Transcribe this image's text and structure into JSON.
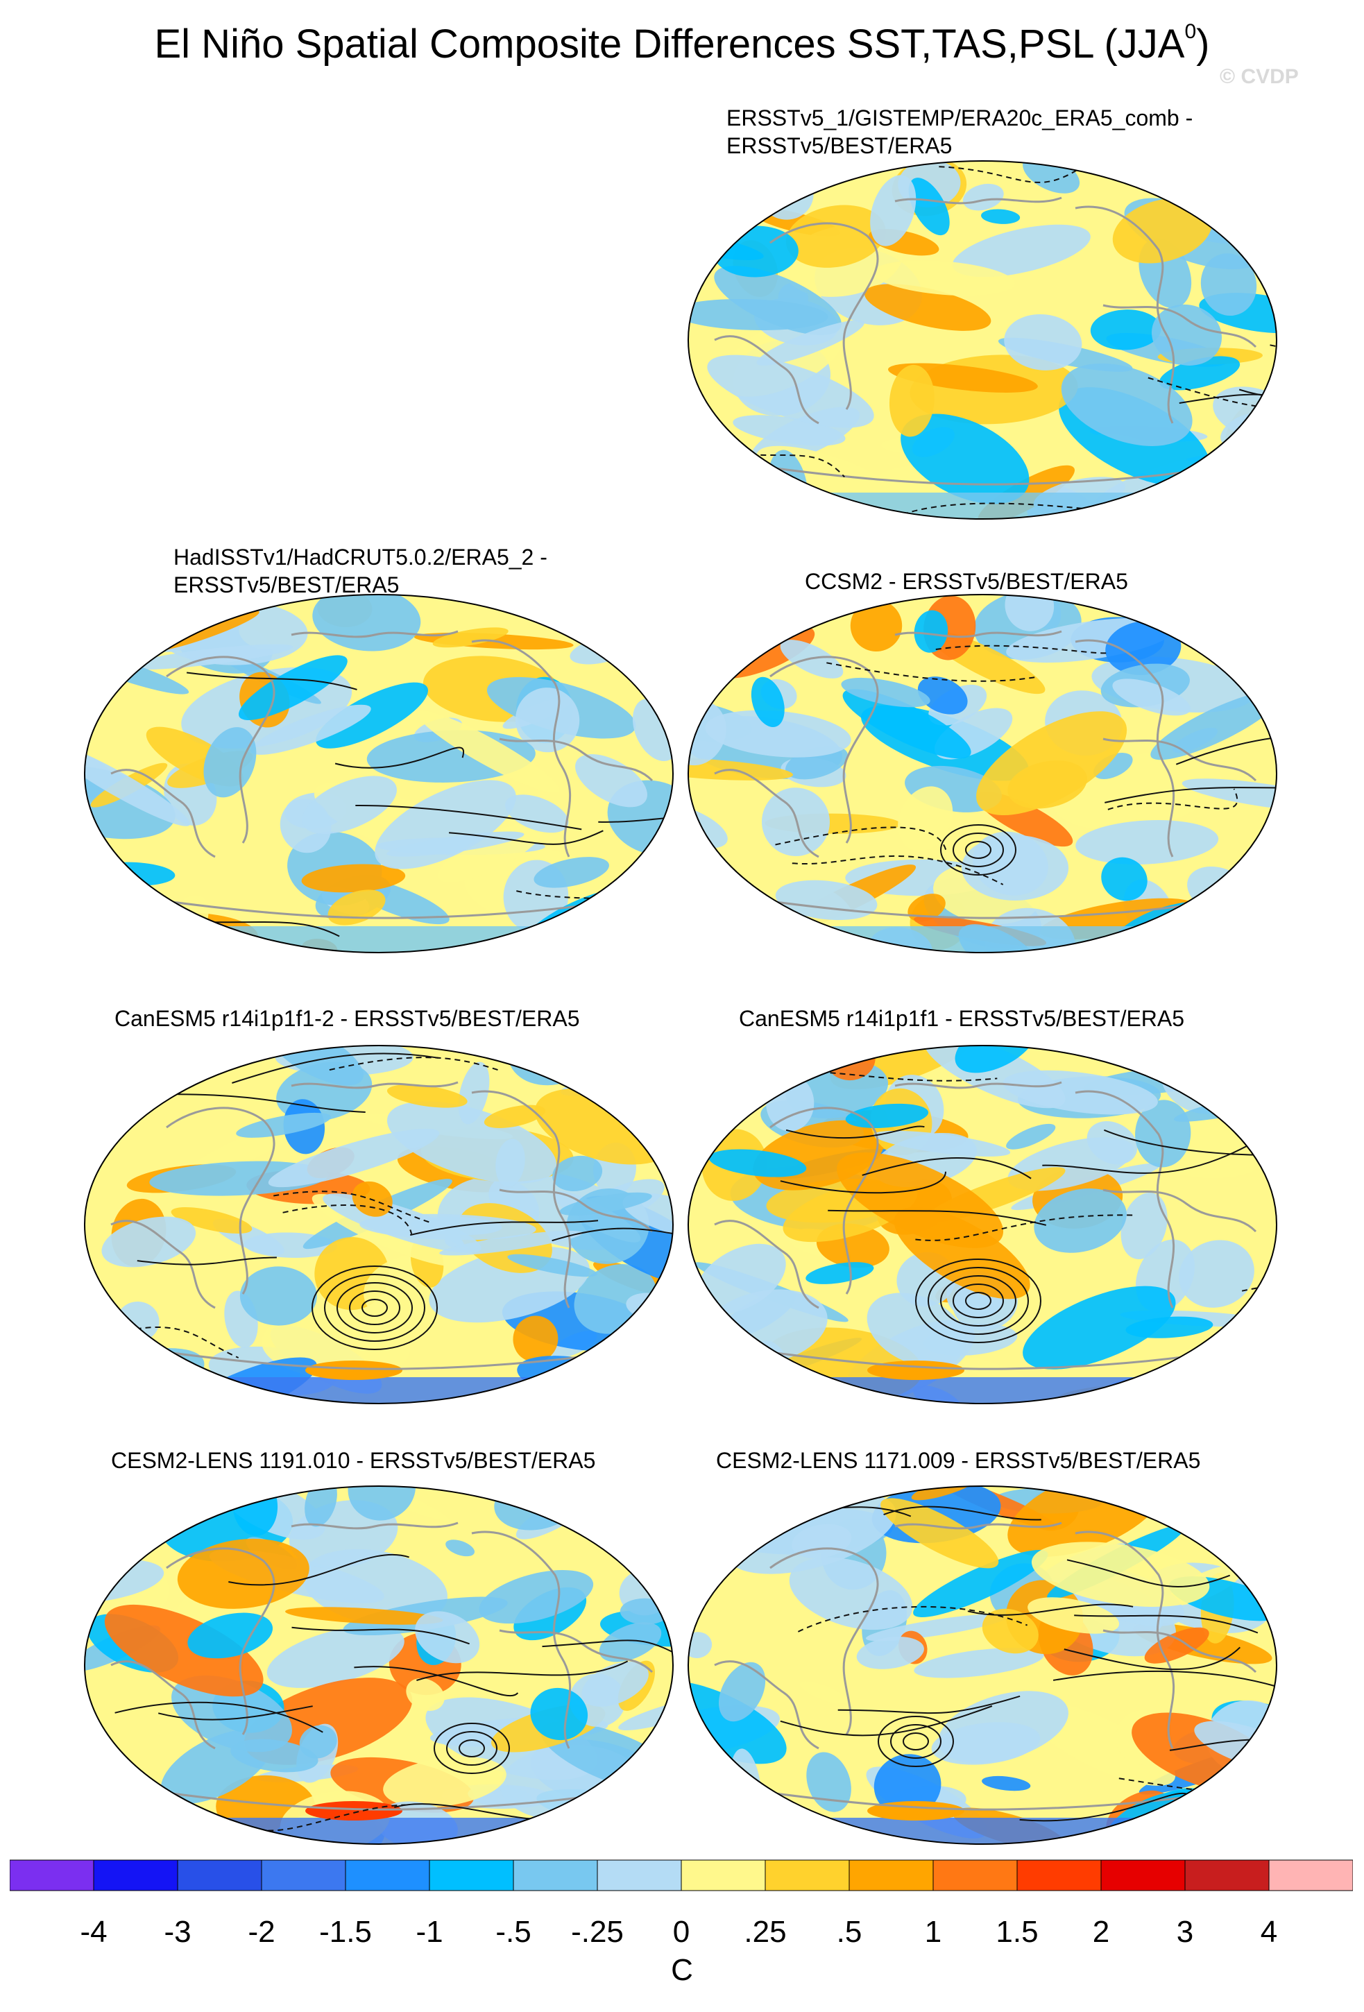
{
  "figure": {
    "title": "El Niño Spatial Composite Differences SST,TAS,PSL (JJA",
    "title_superscript": "0",
    "title_close": ")",
    "watermark": "© CVDP",
    "units": "C"
  },
  "panels": [
    {
      "id": "p1",
      "lines": [
        "ERSSTv5_1/GISTEMP/ERA20c_ERA5_comb -",
        "ERSSTv5/BEST/ERA5"
      ],
      "row": 0,
      "col": 1
    },
    {
      "id": "p2",
      "lines": [
        "HadISSTv1/HadCRUT5.0.2/ERA5_2 -",
        "ERSSTv5/BEST/ERA5"
      ],
      "row": 1,
      "col": 0
    },
    {
      "id": "p3",
      "lines": [
        "CCSM2 - ERSSTv5/BEST/ERA5"
      ],
      "row": 1,
      "col": 1
    },
    {
      "id": "p4",
      "lines": [
        "CanESM5 r14i1p1f1-2 - ERSSTv5/BEST/ERA5"
      ],
      "row": 2,
      "col": 0
    },
    {
      "id": "p5",
      "lines": [
        "CanESM5 r14i1p1f1 - ERSSTv5/BEST/ERA5"
      ],
      "row": 2,
      "col": 1
    },
    {
      "id": "p6",
      "lines": [
        "CESM2-LENS 1191.010 - ERSSTv5/BEST/ERA5"
      ],
      "row": 3,
      "col": 0
    },
    {
      "id": "p7",
      "lines": [
        "CESM2-LENS 1171.009 - ERSSTv5/BEST/ERA5"
      ],
      "row": 3,
      "col": 1
    }
  ],
  "colorbar": {
    "ticks": [
      "-4",
      "-3",
      "-2",
      "-1.5",
      "-1",
      "-.5",
      "-.25",
      "0",
      ".25",
      ".5",
      "1",
      "1.5",
      "2",
      "3",
      "4"
    ],
    "colors": [
      "#7b2ff0",
      "#1414f5",
      "#2850e8",
      "#3c78f0",
      "#1e90ff",
      "#00bfff",
      "#78c8f0",
      "#b4dcf5",
      "#fff88c",
      "#ffd22d",
      "#ffa500",
      "#ff7814",
      "#ff3c00",
      "#e60000",
      "#c81e1e",
      "#ffb4b4"
    ]
  }
}
